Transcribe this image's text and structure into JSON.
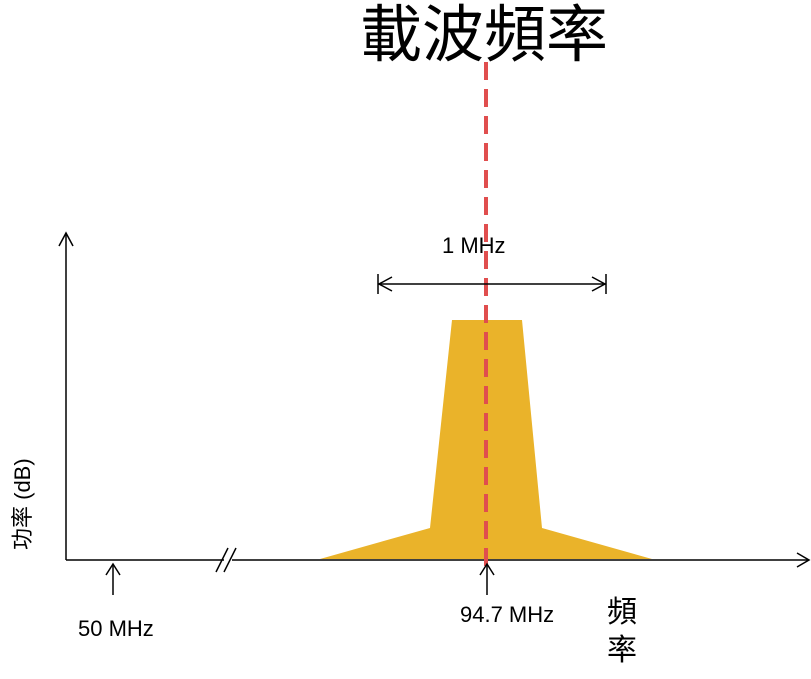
{
  "title": "載波頻率",
  "bandwidth_label": "1 MHz",
  "y_axis_label": "功率 (dB)",
  "x_axis_label": "頻率",
  "markers": {
    "low": "50 MHz",
    "carrier": "94.7 MHz"
  },
  "colors": {
    "signal": "#EAB32A",
    "carrier_line": "#E04E4E",
    "axis": "#000000"
  }
}
